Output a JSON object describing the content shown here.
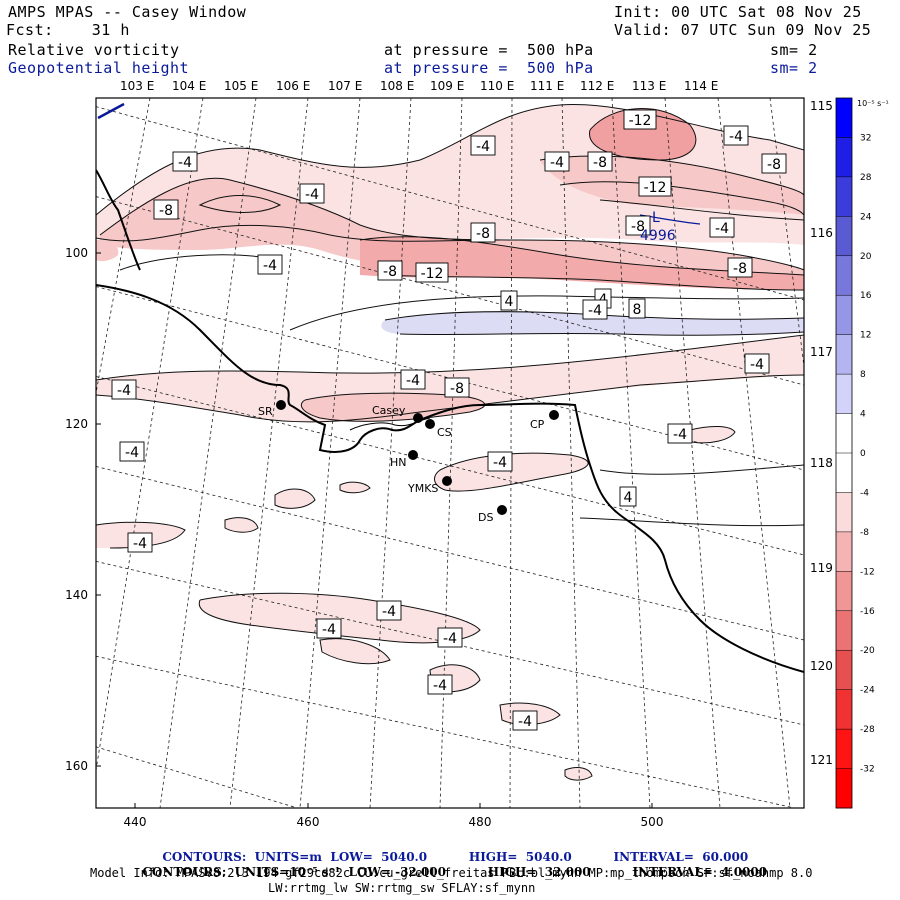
{
  "header": {
    "title": "AMPS MPAS -- Casey Window",
    "init": "Init: 00 UTC Sat 08 Nov 25",
    "forecast": "Fcst:    31 h",
    "valid": "Valid: 07 UTC Sun 09 Nov 25",
    "field1_name": "Relative vorticity",
    "field1_level": "at pressure =  500 hPa",
    "field1_sm": "sm= 2",
    "field2_name": "Geopotential height",
    "field2_level": "at pressure =  500 hPa",
    "field2_sm": "sm= 2"
  },
  "top_lon_labels": [
    "103 E",
    "104 E",
    "105 E",
    "106 E",
    "107 E",
    "108 E",
    "109 E",
    "110 E",
    "111 E",
    "112 E",
    "113 E",
    "114 E"
  ],
  "right_lon_labels": [
    "115 E",
    "116 E",
    "117 E",
    "118 E",
    "119 E",
    "120 E",
    "121 E"
  ],
  "x_ticks": [
    "440",
    "460",
    "480",
    "500"
  ],
  "y_ticks": [
    "100",
    "120",
    "140",
    "160"
  ],
  "colorbar": {
    "units_label": "10⁻⁵ s⁻¹",
    "tick_labels": [
      "32",
      "28",
      "24",
      "20",
      "16",
      "12",
      "8",
      "4",
      "0",
      "-4",
      "-8",
      "-12",
      "-16",
      "-20",
      "-24",
      "-28",
      "-32"
    ],
    "colors": [
      "#0000ff",
      "#1e1ee6",
      "#3c3cdc",
      "#5a5ad2",
      "#7878dc",
      "#9696e6",
      "#b4b4f0",
      "#d2d2fa",
      "#ffffff",
      "#ffffff",
      "#fadcdc",
      "#f5b4b4",
      "#f09696",
      "#eb7373",
      "#e65050",
      "#f03232",
      "#ff1414",
      "#ff0000"
    ]
  },
  "contour_labels": [
    "-4",
    "-4",
    "-4",
    "-8",
    "-12",
    "-4",
    "-4",
    "-8",
    "-8",
    "-12",
    "-8",
    "-4",
    "-8",
    "-8",
    "-12",
    "-8",
    "4",
    "4",
    "8",
    "-4",
    "-4",
    "-4",
    "-8",
    "-4",
    "-4",
    "-4",
    "4",
    "-4",
    "-4",
    "-4",
    "-4",
    "-4",
    "-4",
    "-4",
    "-4"
  ],
  "height_low": {
    "marker": "L",
    "value": "4996"
  },
  "stations": [
    "SR",
    "Casey",
    "CS",
    "CP",
    "HN",
    "YMKS",
    "DS"
  ],
  "footer": {
    "line1_prefix": "CONTOURS:",
    "line1_units": "UNITS=m",
    "line1_low": "LOW=  5040.0",
    "line1_high": "HIGH=  5040.0",
    "line1_interval": "INTERVAL=  60.000",
    "line2_prefix": "CONTOURS:",
    "line2_units": "UNITS=10⁻⁵ s⁻¹",
    "line2_low": "LOW= -32.000",
    "line2_high": "HIGH=  32.000",
    "line2_interval": "INTERVAL=  4.0000",
    "model_info": "Model Info: MPASv8.2.3-194-gf29cd82c CU:cu_grell_freitas PBL:bl_mynn MP:mp_thompson SF:sf_noahmp 8.0",
    "model_info2": "LW:rrtmg_lw SW:rrtmg_sw SFLAY:sf_mynn"
  }
}
